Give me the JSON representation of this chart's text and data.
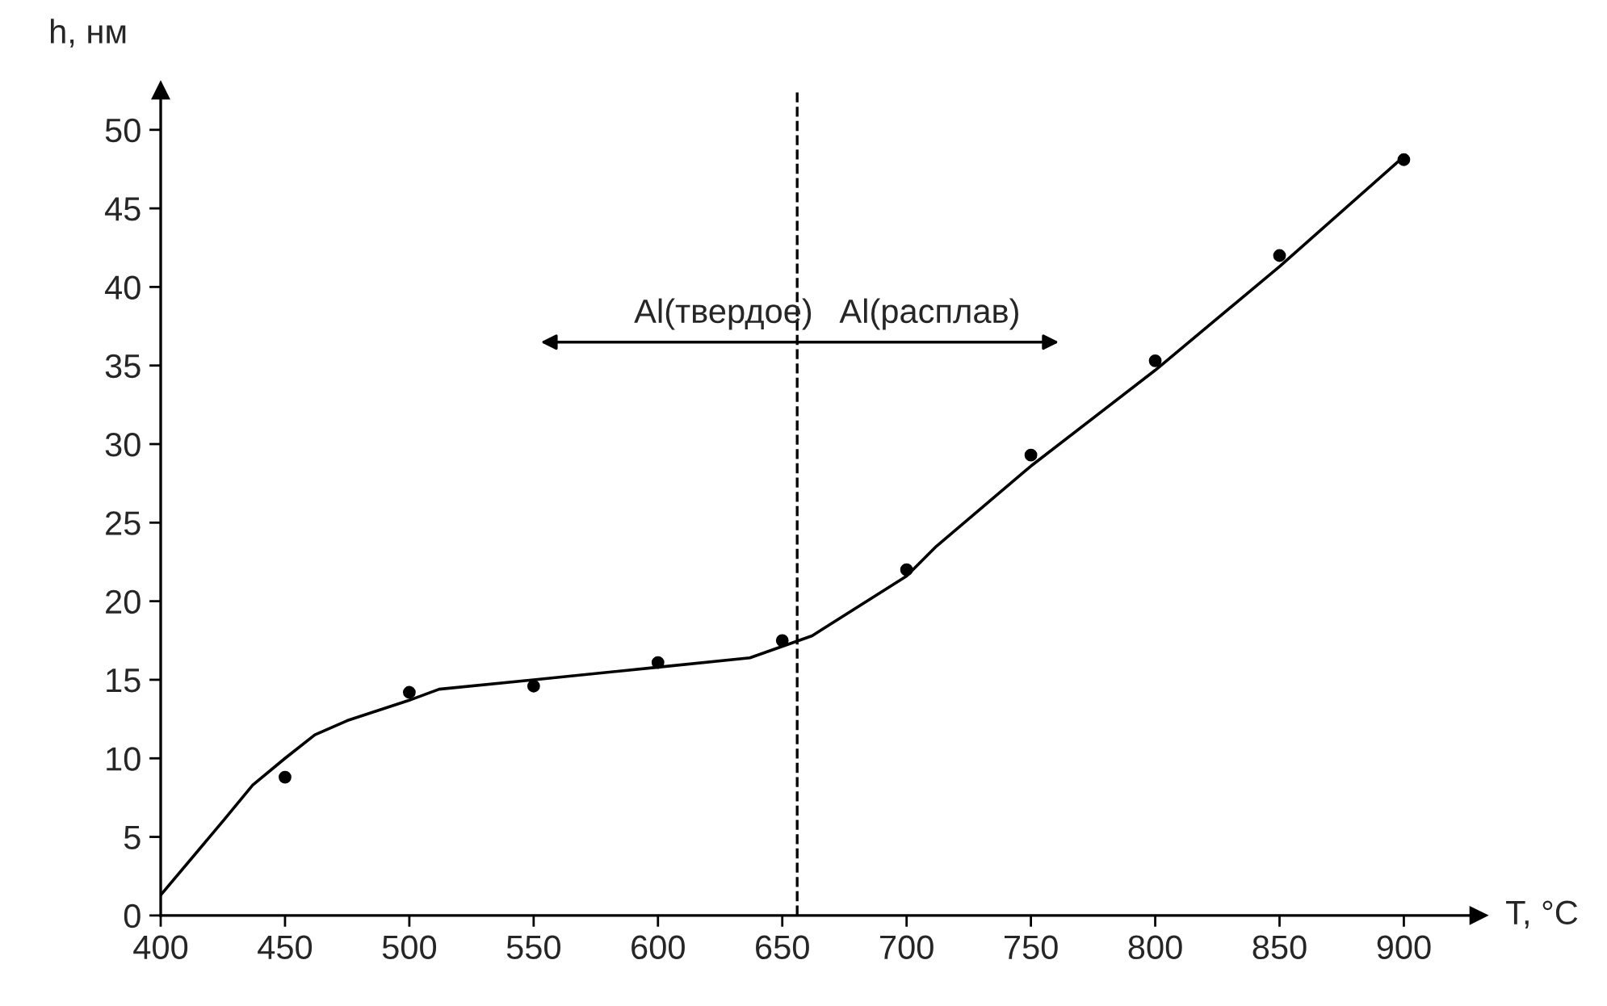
{
  "chart_data": {
    "type": "scatter",
    "xlabel": "T, °C",
    "ylabel": "h, нм",
    "xlim": [
      400,
      930
    ],
    "ylim": [
      0,
      52.5
    ],
    "xticks": [
      400,
      450,
      500,
      550,
      600,
      650,
      700,
      750,
      800,
      850,
      900
    ],
    "yticks": [
      0,
      5,
      10,
      15,
      20,
      25,
      30,
      35,
      40,
      45,
      50
    ],
    "grid": false,
    "legend": false,
    "series": [
      {
        "color": "#000000",
        "marker": "circle",
        "x": [
          450,
          500,
          550,
          600,
          650,
          700,
          750,
          800,
          850,
          900
        ],
        "values": [
          8.8,
          14.2,
          14.6,
          16.1,
          17.5,
          22.0,
          29.3,
          35.3,
          42.0,
          48.1
        ]
      },
      {
        "type": "line",
        "color": "#000000",
        "marker": "none",
        "line_style": "solid",
        "x": [
          400,
          425,
          437,
          450,
          462,
          475,
          500,
          512,
          550,
          600,
          637,
          662,
          700,
          712,
          750,
          800,
          850,
          900
        ],
        "values": [
          1.3,
          6,
          8.3,
          10,
          11.5,
          12.4,
          13.7,
          14.4,
          15,
          15.8,
          16.4,
          17.8,
          21.6,
          23.5,
          28.6,
          34.7,
          41.3,
          48.3
        ]
      }
    ],
    "ref_lines": [
      {
        "axis": "x",
        "value": 656,
        "color": "#000000",
        "line_style": "dashed"
      }
    ],
    "annotations": [
      "Al(твердое)",
      "Al(расплав)"
    ]
  }
}
